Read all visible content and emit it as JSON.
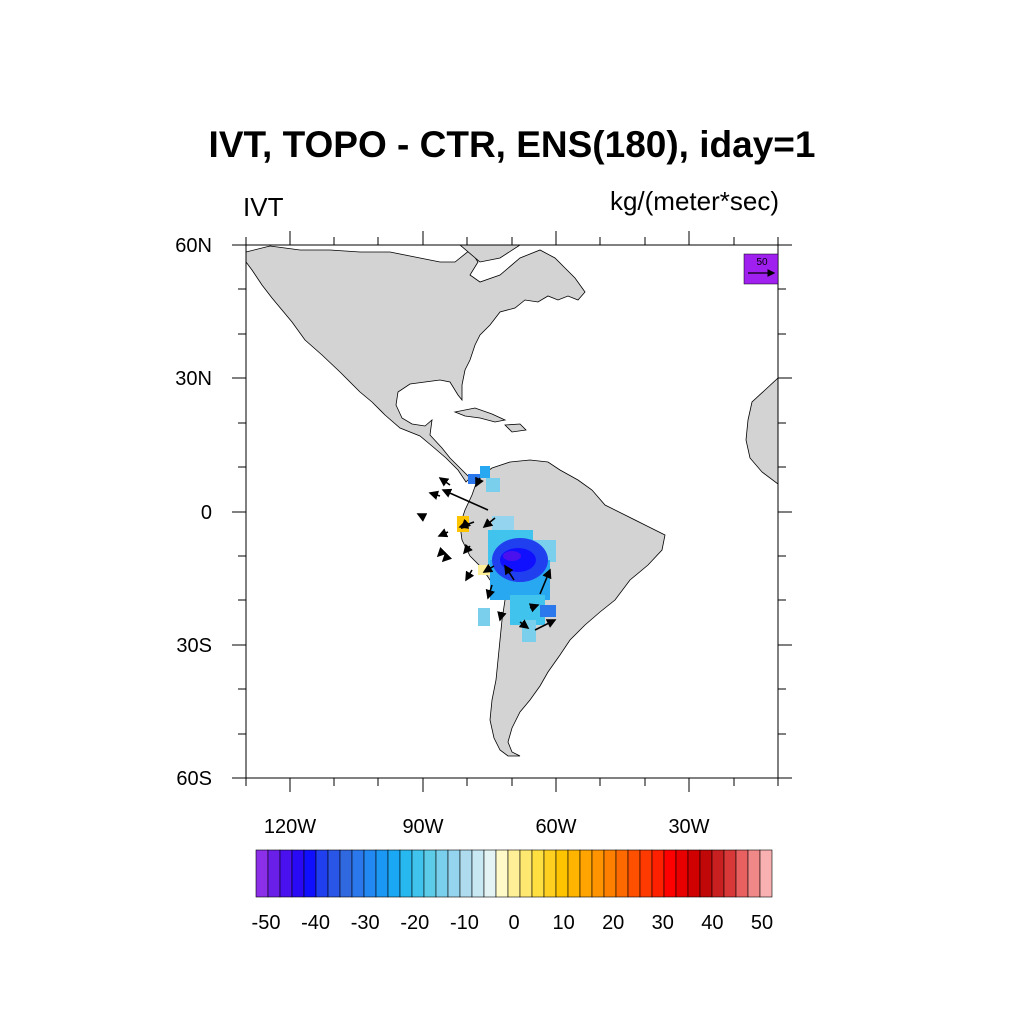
{
  "title": "IVT, TOPO - CTR, ENS(180), iday=1",
  "left_string": "IVT",
  "right_string": "kg/(meter*sec)",
  "lat_labels": [
    "60N",
    "30N",
    "0",
    "30S",
    "60S"
  ],
  "lon_labels": [
    "120W",
    "90W",
    "60W",
    "30W"
  ],
  "reference_vector": {
    "label": "50",
    "color": "#a020f0"
  },
  "colorbar": {
    "labels": [
      "-50",
      "-40",
      "-30",
      "-20",
      "-10",
      "0",
      "10",
      "20",
      "30",
      "40",
      "50"
    ],
    "colors": [
      "#8b2fe8",
      "#6a1fe8",
      "#4a10ee",
      "#2a0af5",
      "#1010ff",
      "#2040f0",
      "#2a56e8",
      "#3068e0",
      "#2b78ec",
      "#2288f2",
      "#1a98f4",
      "#1aa8f4",
      "#28b8f0",
      "#40c4ee",
      "#5ccce8",
      "#7ad0ec",
      "#94d4ee",
      "#aedcee",
      "#c8e8f4",
      "#e4f4f4",
      "#fffac8",
      "#fff098",
      "#ffe870",
      "#ffe040",
      "#ffd020",
      "#ffc400",
      "#ffb400",
      "#ffa400",
      "#ff9400",
      "#ff8000",
      "#ff6a00",
      "#ff5000",
      "#ff3a00",
      "#ff2000",
      "#ff0000",
      "#e80000",
      "#d00000",
      "#c00808",
      "#c82020",
      "#d83838",
      "#e86060",
      "#f08888",
      "#f8b0b0"
    ]
  },
  "land_color": "#d3d3d3"
}
